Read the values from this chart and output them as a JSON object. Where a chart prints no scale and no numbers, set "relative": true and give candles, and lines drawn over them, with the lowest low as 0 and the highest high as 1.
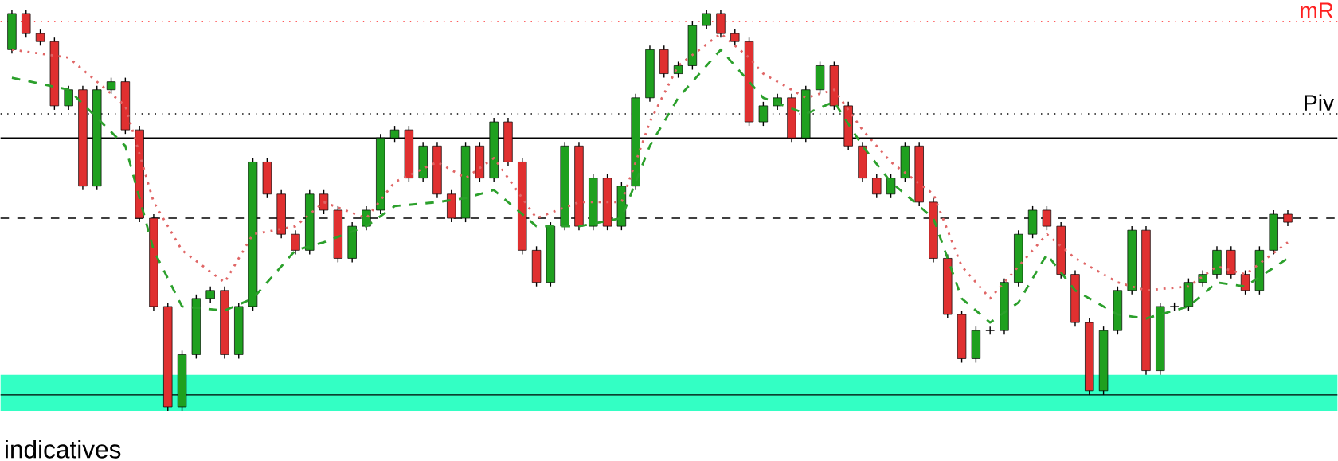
{
  "chart_data": {
    "type": "candlestick",
    "relative": true,
    "categories": [
      null,
      null,
      null,
      null,
      null,
      null,
      null,
      null,
      null,
      null,
      null,
      null,
      null,
      null,
      null,
      null,
      null,
      null,
      null,
      null,
      null,
      null,
      null,
      null,
      null,
      null,
      null,
      null,
      null,
      null,
      null,
      null,
      null,
      null,
      null,
      null,
      null,
      null,
      null,
      null,
      null,
      null,
      null,
      null,
      null,
      null,
      null,
      null,
      null,
      null,
      null,
      null,
      null,
      null,
      null,
      null,
      null,
      null,
      null,
      null,
      null,
      null,
      null,
      null,
      null,
      null,
      null,
      null,
      null,
      null,
      null,
      null,
      null,
      null,
      null,
      null,
      null,
      null,
      null,
      null,
      null,
      null,
      null,
      null,
      null,
      null,
      null,
      null,
      null,
      null,
      null
    ],
    "ohlc": [
      [
        0.9,
        1.0,
        0.89,
        0.99
      ],
      [
        0.99,
        1.0,
        0.93,
        0.94
      ],
      [
        0.94,
        0.95,
        0.91,
        0.92
      ],
      [
        0.92,
        0.93,
        0.75,
        0.76
      ],
      [
        0.76,
        0.81,
        0.75,
        0.8
      ],
      [
        0.8,
        0.81,
        0.55,
        0.56
      ],
      [
        0.56,
        0.81,
        0.55,
        0.8
      ],
      [
        0.8,
        0.83,
        0.79,
        0.82
      ],
      [
        0.82,
        0.83,
        0.69,
        0.7
      ],
      [
        0.7,
        0.71,
        0.47,
        0.48
      ],
      [
        0.48,
        0.49,
        0.25,
        0.26
      ],
      [
        0.26,
        0.27,
        0.0,
        0.01
      ],
      [
        0.01,
        0.15,
        0.0,
        0.14
      ],
      [
        0.14,
        0.29,
        0.13,
        0.28
      ],
      [
        0.28,
        0.31,
        0.27,
        0.3
      ],
      [
        0.3,
        0.31,
        0.13,
        0.14
      ],
      [
        0.14,
        0.27,
        0.13,
        0.26
      ],
      [
        0.26,
        0.63,
        0.25,
        0.62
      ],
      [
        0.62,
        0.63,
        0.53,
        0.54
      ],
      [
        0.54,
        0.55,
        0.43,
        0.44
      ],
      [
        0.44,
        0.45,
        0.39,
        0.4
      ],
      [
        0.4,
        0.55,
        0.39,
        0.54
      ],
      [
        0.54,
        0.55,
        0.49,
        0.5
      ],
      [
        0.5,
        0.51,
        0.37,
        0.38
      ],
      [
        0.38,
        0.47,
        0.37,
        0.46
      ],
      [
        0.46,
        0.51,
        0.45,
        0.5
      ],
      [
        0.5,
        0.69,
        0.49,
        0.68
      ],
      [
        0.68,
        0.71,
        0.67,
        0.7
      ],
      [
        0.7,
        0.71,
        0.57,
        0.58
      ],
      [
        0.58,
        0.67,
        0.57,
        0.66
      ],
      [
        0.66,
        0.67,
        0.53,
        0.54
      ],
      [
        0.54,
        0.55,
        0.47,
        0.48
      ],
      [
        0.48,
        0.67,
        0.47,
        0.66
      ],
      [
        0.66,
        0.67,
        0.57,
        0.58
      ],
      [
        0.58,
        0.73,
        0.57,
        0.72
      ],
      [
        0.72,
        0.73,
        0.61,
        0.62
      ],
      [
        0.62,
        0.63,
        0.39,
        0.4
      ],
      [
        0.4,
        0.41,
        0.31,
        0.32
      ],
      [
        0.32,
        0.47,
        0.31,
        0.46
      ],
      [
        0.46,
        0.67,
        0.45,
        0.66
      ],
      [
        0.66,
        0.67,
        0.45,
        0.46
      ],
      [
        0.46,
        0.59,
        0.45,
        0.58
      ],
      [
        0.58,
        0.59,
        0.45,
        0.46
      ],
      [
        0.46,
        0.57,
        0.45,
        0.56
      ],
      [
        0.56,
        0.79,
        0.55,
        0.78
      ],
      [
        0.78,
        0.91,
        0.77,
        0.9
      ],
      [
        0.9,
        0.91,
        0.83,
        0.84
      ],
      [
        0.84,
        0.87,
        0.83,
        0.86
      ],
      [
        0.86,
        0.97,
        0.85,
        0.96
      ],
      [
        0.96,
        1.0,
        0.95,
        0.99
      ],
      [
        0.99,
        1.0,
        0.93,
        0.94
      ],
      [
        0.94,
        0.95,
        0.91,
        0.92
      ],
      [
        0.92,
        0.93,
        0.71,
        0.72
      ],
      [
        0.72,
        0.77,
        0.71,
        0.76
      ],
      [
        0.76,
        0.79,
        0.75,
        0.78
      ],
      [
        0.78,
        0.79,
        0.67,
        0.68
      ],
      [
        0.68,
        0.81,
        0.67,
        0.8
      ],
      [
        0.8,
        0.87,
        0.79,
        0.86
      ],
      [
        0.86,
        0.87,
        0.75,
        0.76
      ],
      [
        0.76,
        0.77,
        0.65,
        0.66
      ],
      [
        0.66,
        0.67,
        0.57,
        0.58
      ],
      [
        0.58,
        0.59,
        0.53,
        0.54
      ],
      [
        0.54,
        0.59,
        0.53,
        0.58
      ],
      [
        0.58,
        0.67,
        0.57,
        0.66
      ],
      [
        0.66,
        0.67,
        0.51,
        0.52
      ],
      [
        0.52,
        0.53,
        0.37,
        0.38
      ],
      [
        0.38,
        0.39,
        0.23,
        0.24
      ],
      [
        0.24,
        0.25,
        0.12,
        0.13
      ],
      [
        0.13,
        0.21,
        0.12,
        0.2
      ],
      [
        0.2,
        0.21,
        0.19,
        0.2
      ],
      [
        0.2,
        0.33,
        0.19,
        0.32
      ],
      [
        0.32,
        0.45,
        0.31,
        0.44
      ],
      [
        0.44,
        0.51,
        0.43,
        0.5
      ],
      [
        0.5,
        0.51,
        0.45,
        0.46
      ],
      [
        0.46,
        0.47,
        0.33,
        0.34
      ],
      [
        0.34,
        0.35,
        0.21,
        0.22
      ],
      [
        0.22,
        0.23,
        0.04,
        0.05
      ],
      [
        0.05,
        0.21,
        0.04,
        0.2
      ],
      [
        0.2,
        0.31,
        0.19,
        0.3
      ],
      [
        0.3,
        0.46,
        0.29,
        0.45
      ],
      [
        0.45,
        0.46,
        0.09,
        0.1
      ],
      [
        0.1,
        0.27,
        0.09,
        0.26
      ],
      [
        0.26,
        0.27,
        0.25,
        0.26
      ],
      [
        0.26,
        0.33,
        0.25,
        0.32
      ],
      [
        0.32,
        0.35,
        0.31,
        0.34
      ],
      [
        0.34,
        0.41,
        0.33,
        0.4
      ],
      [
        0.4,
        0.41,
        0.33,
        0.34
      ],
      [
        0.34,
        0.35,
        0.29,
        0.3
      ],
      [
        0.3,
        0.41,
        0.29,
        0.4
      ],
      [
        0.4,
        0.5,
        0.39,
        0.49
      ],
      [
        0.49,
        0.5,
        0.46,
        0.47
      ]
    ],
    "series": [
      {
        "type": "line",
        "color": "#e06666",
        "line_style": "dotted",
        "values": [
          0.9,
          null,
          null,
          null,
          0.88,
          null,
          null,
          null,
          0.76,
          null,
          0.52,
          null,
          0.4,
          null,
          null,
          0.32,
          null,
          0.44,
          null,
          null,
          0.46,
          null,
          0.52,
          null,
          null,
          0.48,
          null,
          0.57,
          null,
          null,
          0.62,
          null,
          0.58,
          null,
          0.63,
          null,
          null,
          0.48,
          null,
          null,
          0.52,
          null,
          null,
          0.52,
          null,
          0.72,
          null,
          0.86,
          null,
          null,
          0.94,
          null,
          0.88,
          0.84,
          null,
          null,
          0.78,
          null,
          0.8,
          null,
          0.7,
          null,
          0.62,
          null,
          null,
          0.54,
          null,
          0.36,
          null,
          0.28,
          null,
          0.36,
          null,
          0.44,
          null,
          0.38,
          null,
          null,
          0.32,
          null,
          0.3,
          null,
          null,
          0.31,
          null,
          0.36,
          null,
          0.34,
          null,
          null,
          0.42
        ]
      },
      {
        "type": "line",
        "color": "#2ca02c",
        "line_style": "dashed",
        "values": [
          0.83,
          null,
          null,
          null,
          0.8,
          null,
          null,
          null,
          0.66,
          null,
          0.4,
          null,
          0.26,
          null,
          null,
          0.25,
          null,
          0.28,
          null,
          null,
          0.4,
          null,
          0.42,
          null,
          null,
          0.46,
          null,
          0.51,
          null,
          null,
          0.52,
          null,
          0.53,
          null,
          0.55,
          null,
          null,
          0.46,
          null,
          null,
          0.46,
          null,
          null,
          0.48,
          null,
          0.66,
          null,
          0.78,
          null,
          null,
          0.9,
          null,
          0.82,
          0.78,
          null,
          null,
          0.74,
          null,
          0.77,
          null,
          0.66,
          null,
          0.57,
          null,
          null,
          0.48,
          null,
          0.28,
          null,
          0.22,
          null,
          0.27,
          null,
          0.39,
          null,
          0.3,
          null,
          null,
          0.24,
          null,
          0.23,
          null,
          null,
          0.26,
          null,
          0.32,
          null,
          0.31,
          null,
          null,
          0.38
        ]
      }
    ],
    "ref_lines": [
      {
        "axis": "y",
        "value": 0.97,
        "label": "mR",
        "color": "#ff2020",
        "line_style": "dotted"
      },
      {
        "axis": "y",
        "value": 0.74,
        "label": "Piv",
        "color": "#000000",
        "line_style": "dotted"
      },
      {
        "axis": "y",
        "value": 0.68,
        "color": "#000000",
        "line_style": "solid"
      },
      {
        "axis": "y",
        "value": 0.48,
        "color": "#000000",
        "line_style": "dashed"
      },
      {
        "axis": "y",
        "value": 0.04,
        "color": "#000000",
        "line_style": "solid"
      }
    ],
    "bands": [
      {
        "axis": "y",
        "from": 0.0,
        "to": 0.09,
        "color": "#33ffc4"
      }
    ],
    "annotations": [
      "indicatives"
    ]
  }
}
